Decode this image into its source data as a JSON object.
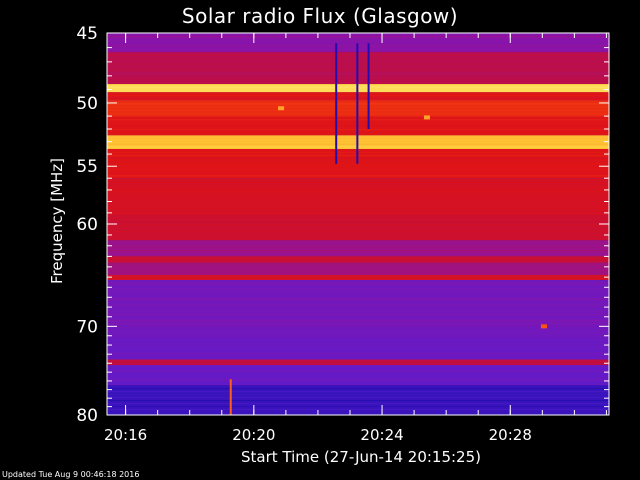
{
  "colors": {
    "background": "#000000",
    "axis": "#ffffff",
    "text": "#ffffff",
    "colormap": [
      "#1a0aa8",
      "#5a1ccf",
      "#8d14a6",
      "#c40e3a",
      "#e01515",
      "#ff5a10",
      "#ffd23a",
      "#fff7a0"
    ]
  },
  "footer": {
    "updated": "Updated Tue Aug  9 00:46:18 2016"
  },
  "chart_data": {
    "type": "heatmap",
    "title": "Solar radio Flux (Glasgow)",
    "xlabel": "Start Time (27-Jun-14 20:15:25)",
    "ylabel": "Frequency [MHz]",
    "x_start": "20:15:25",
    "x_end": "20:31:05",
    "xlim_minutes": [
      15.42,
      31.08
    ],
    "ylim": [
      45,
      80
    ],
    "y_scale": "log",
    "y_inverted": true,
    "x_ticks": [
      {
        "label": "20:16",
        "minute": 16
      },
      {
        "label": "20:20",
        "minute": 20
      },
      {
        "label": "20:24",
        "minute": 24
      },
      {
        "label": "20:28",
        "minute": 28
      }
    ],
    "y_ticks": [
      45,
      50,
      55,
      60,
      70,
      80
    ],
    "y_minor_ticks": [
      46,
      47,
      48,
      49,
      51,
      52,
      53,
      54,
      56,
      57,
      58,
      59,
      61,
      62,
      63,
      64,
      65,
      66,
      67,
      68,
      69,
      71,
      72,
      73,
      74,
      75,
      76,
      77,
      78,
      79
    ],
    "x_minor_tick_step_minutes": 1,
    "frequency_bands": [
      {
        "from": 45.0,
        "to": 46.3,
        "level": 0.28
      },
      {
        "from": 46.3,
        "to": 48.6,
        "level": 0.4
      },
      {
        "from": 48.6,
        "to": 49.2,
        "level": 0.9
      },
      {
        "from": 49.2,
        "to": 49.8,
        "level": 0.55
      },
      {
        "from": 49.8,
        "to": 51.0,
        "level": 0.62
      },
      {
        "from": 51.0,
        "to": 52.5,
        "level": 0.56
      },
      {
        "from": 52.5,
        "to": 53.6,
        "level": 0.84
      },
      {
        "from": 53.6,
        "to": 56.0,
        "level": 0.56
      },
      {
        "from": 56.0,
        "to": 59.2,
        "level": 0.52
      },
      {
        "from": 59.2,
        "to": 61.5,
        "level": 0.47
      },
      {
        "from": 61.5,
        "to": 63.0,
        "level": 0.32
      },
      {
        "from": 63.0,
        "to": 63.6,
        "level": 0.46
      },
      {
        "from": 63.6,
        "to": 64.8,
        "level": 0.34
      },
      {
        "from": 64.8,
        "to": 65.3,
        "level": 0.5
      },
      {
        "from": 65.3,
        "to": 70.0,
        "level": 0.22
      },
      {
        "from": 70.0,
        "to": 73.6,
        "level": 0.2
      },
      {
        "from": 73.6,
        "to": 74.2,
        "level": 0.42
      },
      {
        "from": 74.2,
        "to": 76.5,
        "level": 0.18
      },
      {
        "from": 76.5,
        "to": 80.0,
        "level": 0.07
      }
    ],
    "features": [
      {
        "kind": "vertical_line",
        "minute": 22.57,
        "from_mhz": 45.7,
        "to_mhz": 54.8,
        "level": 0.02
      },
      {
        "kind": "vertical_line",
        "minute": 23.23,
        "from_mhz": 45.7,
        "to_mhz": 54.8,
        "level": 0.02
      },
      {
        "kind": "vertical_line",
        "minute": 23.58,
        "from_mhz": 45.7,
        "to_mhz": 52.0,
        "level": 0.02
      },
      {
        "kind": "vertical_line",
        "minute": 19.28,
        "from_mhz": 75.8,
        "to_mhz": 80.0,
        "level": 0.72
      },
      {
        "kind": "spot",
        "minute": 29.05,
        "mhz": 70.0,
        "level": 0.7
      },
      {
        "kind": "spot",
        "minute": 20.85,
        "mhz": 50.4,
        "level": 0.8
      },
      {
        "kind": "spot",
        "minute": 25.4,
        "mhz": 51.1,
        "level": 0.8
      }
    ]
  }
}
